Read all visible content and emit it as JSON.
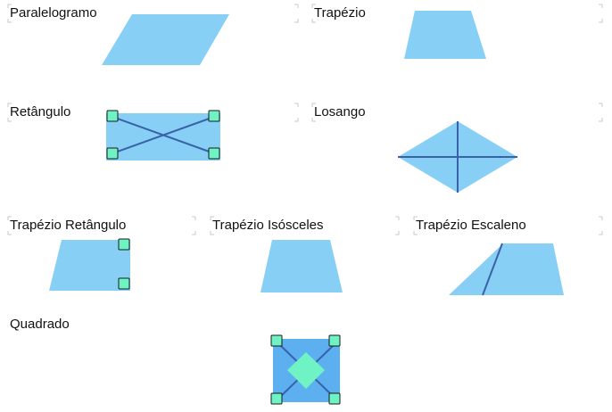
{
  "shapes": [
    {
      "id": "paralelogramo",
      "label": "Paralelogramo"
    },
    {
      "id": "trapezio",
      "label": "Trapézio"
    },
    {
      "id": "retangulo",
      "label": "Retângulo"
    },
    {
      "id": "losango",
      "label": "Losango"
    },
    {
      "id": "trapezio-retangulo",
      "label": "Trapézio Retângulo"
    },
    {
      "id": "trapezio-isosceles",
      "label": "Trapézio Isósceles"
    },
    {
      "id": "trapezio-escaleno",
      "label": "Trapézio Escaleno"
    },
    {
      "id": "quadrado",
      "label": "Quadrado"
    }
  ],
  "colors": {
    "fill": "#87cff5",
    "fill_square": "#5db0f0",
    "line": "#3a62a8",
    "marker_fill": "#6ff2c4",
    "marker_stroke": "#1a1a1a",
    "bracket": "#c8c8c8"
  }
}
